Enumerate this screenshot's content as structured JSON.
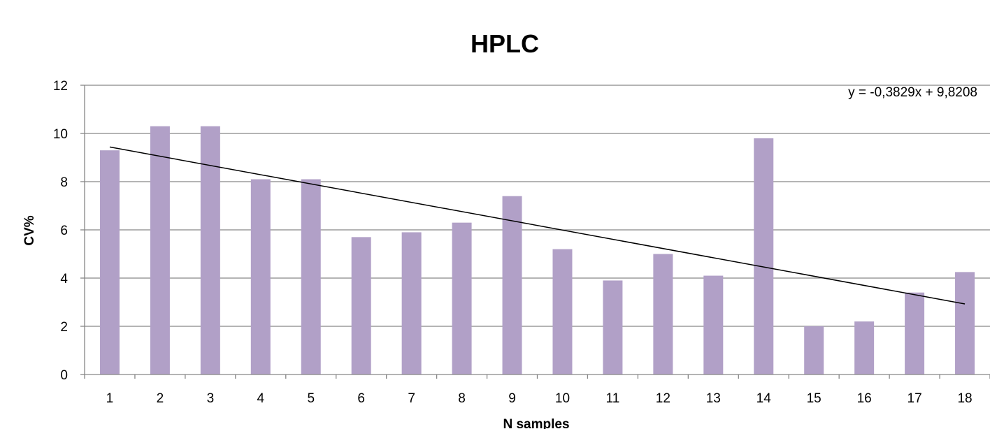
{
  "chart_data": {
    "type": "bar",
    "title": "HPLC",
    "xlabel": "N samples",
    "ylabel": "CV%",
    "categories": [
      "1",
      "2",
      "3",
      "4",
      "5",
      "6",
      "7",
      "8",
      "9",
      "10",
      "11",
      "12",
      "13",
      "14",
      "15",
      "16",
      "17",
      "18"
    ],
    "values": [
      9.3,
      10.3,
      10.3,
      8.1,
      8.1,
      5.7,
      5.9,
      6.3,
      7.4,
      5.2,
      3.9,
      5.0,
      4.1,
      9.8,
      2.0,
      2.2,
      3.4,
      4.25
    ],
    "ylim": [
      0,
      12
    ],
    "yticks": [
      "0",
      "2",
      "4",
      "6",
      "8",
      "10",
      "12"
    ],
    "grid": true,
    "bar_color": "#b1a0c7",
    "trendline": {
      "type": "linear",
      "slope": -0.3829,
      "intercept": 9.8208,
      "equation": "y = -0,3829x + 9,8208",
      "color": "#000000"
    }
  }
}
